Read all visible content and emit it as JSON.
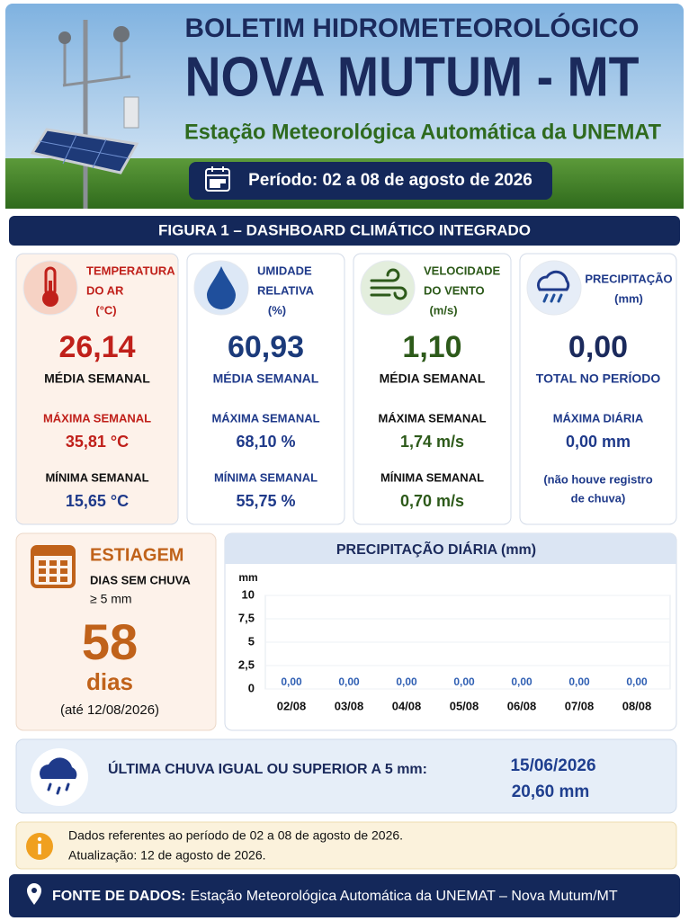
{
  "header": {
    "title": "BOLETIM HIDROMETEOROLÓGICO",
    "city": "NOVA MUTUM - MT",
    "subtitle": "Estação Meteorológica Automática da UNEMAT",
    "period": "Período: 02 a 08 de agosto de 2026"
  },
  "dashboard": {
    "title": "FIGURA 1 – DASHBOARD CLIMÁTICO INTEGRADO",
    "cards": [
      {
        "heading": [
          "TEMPERATURA",
          "DO AR",
          "(°C)"
        ],
        "main": "26,14",
        "main_label": "MÉDIA SEMANAL",
        "max_label": "MÁXIMA SEMANAL",
        "max": "35,81 °C",
        "min_label": "MÍNIMA SEMANAL",
        "min": "15,65 °C"
      },
      {
        "heading": [
          "UMIDADE",
          "RELATIVA",
          "(%)"
        ],
        "main": "60,93",
        "main_label": "MÉDIA SEMANAL",
        "max_label": "MÁXIMA SEMANAL",
        "max": "68,10 %",
        "min_label": "MÍNIMA SEMANAL",
        "min": "55,75 %"
      },
      {
        "heading": [
          "VELOCIDADE",
          "DO VENTO",
          "(m/s)"
        ],
        "main": "1,10",
        "main_label": "MÉDIA SEMANAL",
        "max_label": "MÁXIMA SEMANAL",
        "max": "1,74 m/s",
        "min_label": "MÍNIMA SEMANAL",
        "min": "0,70 m/s"
      },
      {
        "heading": [
          "PRECIPITAÇÃO",
          "(mm)"
        ],
        "main": "0,00",
        "main_label": "TOTAL NO PERÍODO",
        "max_label": "MÁXIMA DIÁRIA",
        "max": "0,00 mm",
        "note": [
          "(não houve registro",
          "de chuva)"
        ]
      }
    ]
  },
  "estiagem": {
    "title": "ESTIAGEM",
    "label": "DIAS SEM CHUVA",
    "threshold": "≥ 5 mm",
    "days": "58",
    "unit": "dias",
    "until": "(até 12/08/2026)"
  },
  "chart_data": {
    "type": "bar",
    "title": "PRECIPITAÇÃO DIÁRIA (mm)",
    "y_label": "mm",
    "categories": [
      "02/08",
      "03/08",
      "04/08",
      "05/08",
      "06/08",
      "07/08",
      "08/08"
    ],
    "values": [
      0,
      0,
      0,
      0,
      0,
      0,
      0
    ],
    "value_labels": [
      "0,00",
      "0,00",
      "0,00",
      "0,00",
      "0,00",
      "0,00",
      "0,00"
    ],
    "color": "#2f5fb3",
    "ylim": [
      0,
      10
    ],
    "yticks": [
      0,
      {
        "value": 2.5,
        "label": "2,5"
      },
      5,
      {
        "value": 7.5,
        "label": "7,5"
      },
      10
    ],
    "grid": true
  },
  "last_rain": {
    "label": "ÚLTIMA CHUVA IGUAL OU SUPERIOR A 5 mm:",
    "date": "15/06/2026",
    "amount": "20,60 mm"
  },
  "note": {
    "line1": "Dados referentes ao período de 02 a 08 de agosto de 2026.",
    "line2": "Atualização: 12 de agosto de 2026."
  },
  "footer": {
    "label": "FONTE DE DADOS:",
    "text": "Estação Meteorológica Automática da UNEMAT – Nova Mutum/MT"
  }
}
